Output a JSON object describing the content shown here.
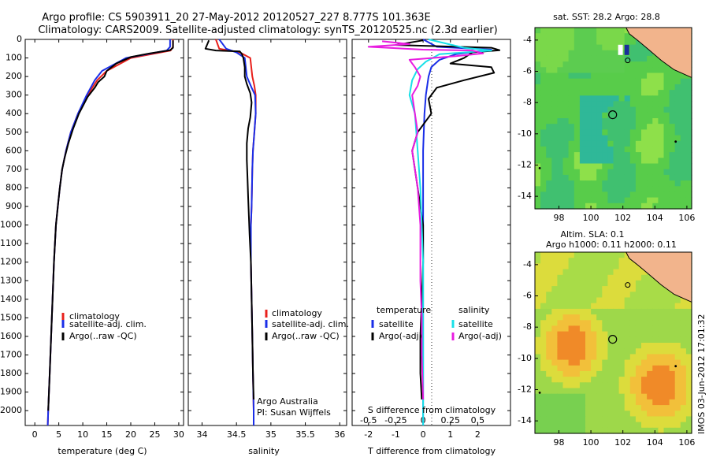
{
  "header": {
    "line1": "Argo profile: CS 5903911_20 27-May-2012 20120527_227 8.777S 101.363E",
    "line2": "Climatology: CARS2009. Satellite-adjusted climatology: synTS_20120525.nc (2.3d earlier)"
  },
  "colors": {
    "clim": "#e8201c",
    "sat": "#1a2ee8",
    "argo": "#000000",
    "cyan": "#18e0e8",
    "magenta": "#e81ce0",
    "land": "#f2b48c",
    "sea": "#48c86a"
  },
  "chart_data": [
    {
      "type": "line",
      "name": "temperature",
      "xlabel": "temperature (deg C)",
      "ylabel": "",
      "xlim": [
        -2,
        31
      ],
      "ylim": [
        2080,
        0
      ],
      "xticks": [
        0,
        5,
        10,
        15,
        20,
        25,
        30
      ],
      "yticks": [
        0,
        100,
        200,
        300,
        400,
        500,
        600,
        700,
        800,
        900,
        1000,
        1100,
        1200,
        1300,
        1400,
        1500,
        1600,
        1700,
        1800,
        1900,
        2000
      ],
      "legend": [
        "climatology",
        "satellite-adj. clim.",
        "Argo(..raw -QC)"
      ],
      "series": [
        {
          "name": "climatology",
          "color": "clim",
          "points": [
            [
              28.8,
              0
            ],
            [
              28.8,
              40
            ],
            [
              28.3,
              60
            ],
            [
              20,
              100
            ],
            [
              15,
              170
            ],
            [
              13,
              220
            ],
            [
              11,
              300
            ],
            [
              9,
              400
            ],
            [
              7.5,
              500
            ],
            [
              6.5,
              600
            ],
            [
              5.7,
              700
            ],
            [
              5.2,
              800
            ],
            [
              4.8,
              900
            ],
            [
              4.4,
              1000
            ],
            [
              4,
              1200
            ],
            [
              3.7,
              1400
            ],
            [
              3.4,
              1600
            ],
            [
              3.1,
              1800
            ],
            [
              2.8,
              2000
            ],
            [
              2.7,
              2080
            ]
          ]
        },
        {
          "name": "satellite-adj. clim.",
          "color": "sat",
          "points": [
            [
              28.2,
              0
            ],
            [
              28.2,
              40
            ],
            [
              27.5,
              60
            ],
            [
              19,
              100
            ],
            [
              14,
              170
            ],
            [
              12.5,
              220
            ],
            [
              10.8,
              300
            ],
            [
              9,
              400
            ],
            [
              7.5,
              500
            ],
            [
              6.5,
              600
            ],
            [
              5.7,
              700
            ],
            [
              5.2,
              800
            ],
            [
              4.8,
              900
            ],
            [
              4.4,
              1000
            ],
            [
              4,
              1200
            ],
            [
              3.7,
              1400
            ],
            [
              3.4,
              1600
            ],
            [
              3.1,
              1800
            ],
            [
              2.8,
              2000
            ],
            [
              2.7,
              2080
            ]
          ]
        },
        {
          "name": "Argo(..raw -QC)",
          "color": "argo",
          "points": [
            [
              28.8,
              5
            ],
            [
              28.8,
              45
            ],
            [
              28.2,
              58
            ],
            [
              24,
              75
            ],
            [
              20,
              95
            ],
            [
              17,
              130
            ],
            [
              15,
              170
            ],
            [
              14.5,
              200
            ],
            [
              13.2,
              230
            ],
            [
              12.5,
              260
            ],
            [
              11,
              310
            ],
            [
              9.2,
              400
            ],
            [
              8,
              480
            ],
            [
              7,
              560
            ],
            [
              6.2,
              640
            ],
            [
              5.7,
              700
            ],
            [
              5.2,
              800
            ],
            [
              4.8,
              900
            ],
            [
              4.4,
              1000
            ],
            [
              4,
              1200
            ],
            [
              3.7,
              1400
            ],
            [
              3.4,
              1600
            ],
            [
              3.1,
              1800
            ],
            [
              2.8,
              2000
            ]
          ]
        }
      ]
    },
    {
      "type": "line",
      "name": "salinity",
      "xlabel": "salinity",
      "xlim": [
        33.8,
        36.1
      ],
      "ylim": [
        2080,
        0
      ],
      "xticks": [
        34,
        34.5,
        35,
        35.5,
        36
      ],
      "legend": [
        "climatology",
        "satellite-adj. clim.",
        "Argo(..raw -QC)"
      ],
      "series": [
        {
          "name": "climatology",
          "color": "clim",
          "points": [
            [
              34.2,
              0
            ],
            [
              34.25,
              50
            ],
            [
              34.55,
              70
            ],
            [
              34.7,
              100
            ],
            [
              34.73,
              200
            ],
            [
              34.76,
              250
            ],
            [
              34.78,
              300
            ],
            [
              34.78,
              400
            ],
            [
              34.76,
              500
            ],
            [
              34.74,
              600
            ],
            [
              34.73,
              700
            ],
            [
              34.72,
              900
            ],
            [
              34.71,
              1000
            ],
            [
              34.71,
              1200
            ],
            [
              34.72,
              1400
            ],
            [
              34.73,
              1600
            ],
            [
              34.74,
              1800
            ],
            [
              34.75,
              2000
            ],
            [
              34.75,
              2080
            ]
          ]
        },
        {
          "name": "satellite-adj. clim.",
          "color": "sat",
          "points": [
            [
              34.25,
              0
            ],
            [
              34.35,
              50
            ],
            [
              34.5,
              70
            ],
            [
              34.62,
              100
            ],
            [
              34.65,
              200
            ],
            [
              34.72,
              260
            ],
            [
              34.77,
              300
            ],
            [
              34.78,
              400
            ],
            [
              34.76,
              500
            ],
            [
              34.74,
              600
            ],
            [
              34.73,
              700
            ],
            [
              34.72,
              900
            ],
            [
              34.71,
              1000
            ],
            [
              34.71,
              1200
            ],
            [
              34.72,
              1400
            ],
            [
              34.73,
              1600
            ],
            [
              34.74,
              1800
            ],
            [
              34.75,
              2000
            ],
            [
              34.75,
              2080
            ]
          ]
        },
        {
          "name": "Argo(..raw -QC)",
          "color": "argo",
          "points": [
            [
              34.1,
              5
            ],
            [
              34.05,
              50
            ],
            [
              34.2,
              60
            ],
            [
              34.55,
              65
            ],
            [
              34.58,
              80
            ],
            [
              34.6,
              100
            ],
            [
              34.62,
              150
            ],
            [
              34.62,
              200
            ],
            [
              34.65,
              240
            ],
            [
              34.7,
              290
            ],
            [
              34.72,
              340
            ],
            [
              34.7,
              420
            ],
            [
              34.67,
              480
            ],
            [
              34.65,
              560
            ],
            [
              34.65,
              650
            ],
            [
              34.66,
              750
            ],
            [
              34.67,
              850
            ],
            [
              34.68,
              950
            ],
            [
              34.69,
              1050
            ],
            [
              34.71,
              1200
            ],
            [
              34.72,
              1400
            ],
            [
              34.73,
              1600
            ],
            [
              34.74,
              1800
            ],
            [
              34.75,
              1940
            ]
          ]
        }
      ],
      "annotation": [
        "Argo Australia",
        "PI: Susan Wijffels"
      ]
    },
    {
      "type": "line",
      "name": "difference",
      "xlabel": "T difference from climatology",
      "xlabel_top": "S difference from climatology",
      "xlim": [
        -2.6,
        3.2
      ],
      "ylim": [
        2080,
        0
      ],
      "xticks": [
        -2,
        -1,
        0,
        1,
        2
      ],
      "xticks_s": [
        -0.5,
        -0.25,
        0,
        0.25,
        0.5
      ],
      "xticks_s_labels": [
        "-0.5",
        "-0.25",
        "0",
        "0.25",
        "0.5"
      ],
      "legend_left_title": "temperature",
      "legend_right_title": "salinity",
      "legend": [
        "satellite",
        "Argo(-adj)",
        "satellite",
        "Argo(-adj)"
      ],
      "series": [
        {
          "name": "T satellite",
          "color": "sat",
          "points": [
            [
              0,
              0
            ],
            [
              0.5,
              40
            ],
            [
              2.5,
              55
            ],
            [
              1.2,
              80
            ],
            [
              0.6,
              110
            ],
            [
              0.3,
              150
            ],
            [
              0.2,
              200
            ],
            [
              0.1,
              300
            ],
            [
              0.05,
              400
            ],
            [
              0,
              600
            ],
            [
              0,
              800
            ],
            [
              0,
              1200
            ],
            [
              0,
              1600
            ],
            [
              0,
              2080
            ]
          ]
        },
        {
          "name": "T Argo(-adj)",
          "color": "argo",
          "points": [
            [
              0,
              5
            ],
            [
              -1,
              30
            ],
            [
              2.5,
              45
            ],
            [
              2.8,
              58
            ],
            [
              1.8,
              70
            ],
            [
              1.5,
              100
            ],
            [
              1,
              130
            ],
            [
              2.5,
              150
            ],
            [
              2.6,
              180
            ],
            [
              1.5,
              220
            ],
            [
              0.5,
              260
            ],
            [
              0.2,
              320
            ],
            [
              0.3,
              400
            ],
            [
              -0.2,
              500
            ],
            [
              -0.4,
              600
            ],
            [
              -0.3,
              700
            ],
            [
              -0.2,
              800
            ],
            [
              -0.1,
              900
            ],
            [
              0,
              1000
            ],
            [
              0,
              1200
            ],
            [
              -0.05,
              1400
            ],
            [
              -0.1,
              1600
            ],
            [
              -0.1,
              1800
            ],
            [
              -0.05,
              1940
            ]
          ]
        },
        {
          "name": "S satellite",
          "color": "cyan",
          "points": [
            [
              0.2,
              0
            ],
            [
              1.5,
              45
            ],
            [
              2.5,
              60
            ],
            [
              0.6,
              80
            ],
            [
              0.1,
              120
            ],
            [
              -0.2,
              160
            ],
            [
              -0.4,
              220
            ],
            [
              -0.5,
              300
            ],
            [
              -0.3,
              400
            ],
            [
              -0.2,
              600
            ],
            [
              -0.1,
              800
            ],
            [
              0,
              1200
            ],
            [
              0,
              1600
            ],
            [
              0,
              2080
            ]
          ]
        },
        {
          "name": "S Argo(-adj)",
          "color": "magenta",
          "points": [
            [
              -1.5,
              10
            ],
            [
              -0.5,
              25
            ],
            [
              -2,
              40
            ],
            [
              0,
              55
            ],
            [
              1.8,
              60
            ],
            [
              2.2,
              75
            ],
            [
              1.2,
              90
            ],
            [
              -0.5,
              110
            ],
            [
              -0.3,
              150
            ],
            [
              -0.1,
              200
            ],
            [
              -0.2,
              250
            ],
            [
              -0.4,
              300
            ],
            [
              -0.3,
              400
            ],
            [
              -0.2,
              500
            ],
            [
              -0.4,
              600
            ],
            [
              -0.2,
              800
            ],
            [
              -0.1,
              1000
            ],
            [
              -0.1,
              1300
            ],
            [
              -0.05,
              1500
            ],
            [
              -0.05,
              1700
            ],
            [
              0,
              1940
            ]
          ]
        }
      ]
    },
    {
      "type": "heatmap",
      "name": "sst-map",
      "title": "sat. SST: 28.2 Argo: 28.8",
      "xlim": [
        96.5,
        106.3
      ],
      "ylim": [
        -14.8,
        -3.2
      ],
      "xticks": [
        98,
        100,
        102,
        104,
        106
      ],
      "yticks": [
        -4,
        -6,
        -8,
        -10,
        -12,
        -14
      ],
      "argo_position": [
        101.363,
        -8.777
      ]
    },
    {
      "type": "heatmap",
      "name": "sla-map",
      "title_line1": "Altim. SLA: 0.1",
      "title_line2": "Argo h1000: 0.11 h2000: 0.11",
      "xlim": [
        96.5,
        106.3
      ],
      "ylim": [
        -14.8,
        -3.2
      ],
      "xticks": [
        98,
        100,
        102,
        104,
        106
      ],
      "yticks": [
        -4,
        -6,
        -8,
        -10,
        -12,
        -14
      ],
      "argo_position": [
        101.363,
        -8.777
      ]
    }
  ],
  "footer": {
    "stamp": "IMOS 03-Jun-2012 17:01:32"
  }
}
